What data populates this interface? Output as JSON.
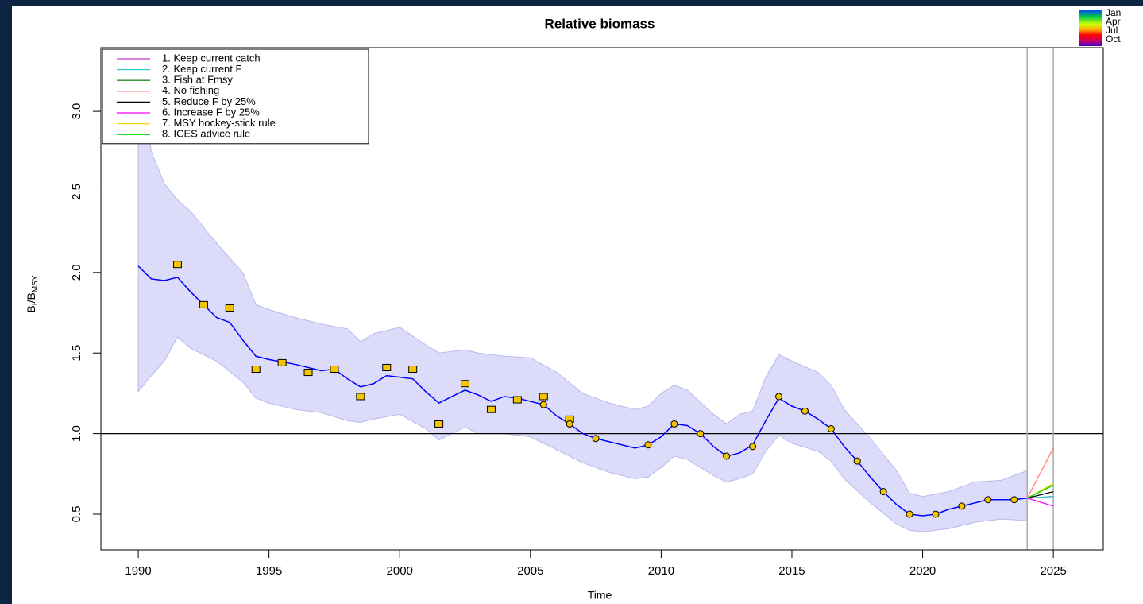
{
  "chart_data": {
    "type": "line",
    "title": "Relative biomass",
    "xlabel": "Time",
    "ylabel_parts": [
      "B",
      "t",
      "/B",
      "MSY"
    ],
    "xlim": [
      1988.57,
      2026.91
    ],
    "ylim": [
      0.278,
      3.395
    ],
    "xticks": [
      1990,
      1995,
      2000,
      2005,
      2010,
      2015,
      2020,
      2025
    ],
    "yticks": [
      0.5,
      {
        "value": 1,
        "label": "1.0"
      },
      1.5,
      {
        "value": 2,
        "label": "2.0"
      },
      2.5,
      {
        "value": 3,
        "label": "3.0"
      }
    ],
    "hline": 1,
    "vlines": [
      2024,
      2025
    ],
    "legend_position": "topleft",
    "band": {
      "color": "#dcdcfa",
      "x": [
        1990,
        1990.5,
        1991,
        1991.5,
        1992,
        1993,
        1994,
        1994.5,
        1995,
        1996,
        1997,
        1998,
        1998.5,
        1999,
        2000,
        2001,
        2001.5,
        2002,
        2002.5,
        2003,
        2004,
        2005,
        2006,
        2007,
        2008,
        2009,
        2009.5,
        2010,
        2010.5,
        2011,
        2012,
        2012.5,
        2013,
        2013.5,
        2014,
        2014.5,
        2015,
        2016,
        2016.5,
        2017,
        2018,
        2019,
        2019.5,
        2020,
        2021,
        2022,
        2023,
        2024
      ],
      "upper": [
        3.28,
        2.75,
        2.55,
        2.45,
        2.38,
        2.18,
        2.0,
        1.8,
        1.77,
        1.72,
        1.68,
        1.65,
        1.57,
        1.62,
        1.66,
        1.55,
        1.5,
        1.51,
        1.52,
        1.5,
        1.48,
        1.47,
        1.38,
        1.25,
        1.19,
        1.15,
        1.17,
        1.25,
        1.3,
        1.27,
        1.12,
        1.06,
        1.12,
        1.14,
        1.35,
        1.49,
        1.45,
        1.38,
        1.3,
        1.15,
        0.97,
        0.77,
        0.63,
        0.61,
        0.64,
        0.7,
        0.71,
        0.77
      ],
      "lower": [
        1.26,
        1.36,
        1.45,
        1.6,
        1.53,
        1.45,
        1.32,
        1.22,
        1.19,
        1.15,
        1.13,
        1.08,
        1.07,
        1.09,
        1.12,
        1.03,
        0.96,
        1.0,
        1.04,
        1.0,
        1.0,
        0.98,
        0.9,
        0.82,
        0.76,
        0.72,
        0.73,
        0.79,
        0.86,
        0.84,
        0.74,
        0.7,
        0.72,
        0.75,
        0.89,
        0.99,
        0.94,
        0.89,
        0.83,
        0.72,
        0.57,
        0.44,
        0.4,
        0.39,
        0.41,
        0.45,
        0.47,
        0.46
      ]
    },
    "estimate": {
      "color": "#0000ff",
      "x": [
        1990,
        1990.5,
        1991,
        1991.5,
        1992,
        1993,
        1993.5,
        1994,
        1994.5,
        1995,
        1996,
        1997,
        1997.5,
        1998,
        1998.5,
        1999,
        1999.5,
        2000,
        2000.5,
        2001,
        2001.5,
        2002,
        2002.5,
        2003,
        2003.5,
        2004,
        2004.5,
        2005,
        2005.5,
        2006,
        2006.5,
        2007,
        2007.5,
        2008,
        2009,
        2009.5,
        2010,
        2010.5,
        2011,
        2011.5,
        2012,
        2012.5,
        2013,
        2013.5,
        2014,
        2014.5,
        2015,
        2015.5,
        2016,
        2016.5,
        2017,
        2017.5,
        2018,
        2018.5,
        2019,
        2019.5,
        2020,
        2020.5,
        2021,
        2021.5,
        2022,
        2022.5,
        2023,
        2023.5,
        2024
      ],
      "values": [
        2.04,
        1.96,
        1.95,
        1.97,
        1.88,
        1.72,
        1.69,
        1.58,
        1.48,
        1.46,
        1.43,
        1.39,
        1.4,
        1.34,
        1.29,
        1.31,
        1.36,
        1.35,
        1.34,
        1.26,
        1.19,
        1.23,
        1.27,
        1.24,
        1.2,
        1.23,
        1.22,
        1.2,
        1.18,
        1.11,
        1.06,
        1.0,
        0.97,
        0.95,
        0.91,
        0.93,
        0.98,
        1.06,
        1.05,
        1.0,
        0.92,
        0.86,
        0.88,
        0.93,
        1.08,
        1.22,
        1.17,
        1.14,
        1.09,
        1.03,
        0.92,
        0.83,
        0.73,
        0.64,
        0.56,
        0.5,
        0.49,
        0.5,
        0.53,
        0.55,
        0.57,
        0.59,
        0.59,
        0.59,
        0.6
      ]
    },
    "index1": {
      "color": "#f5c400",
      "x": [
        1991.5,
        1992.5,
        1993.5,
        1994.5,
        1995.5,
        1996.5,
        1997.5,
        1998.5,
        1999.5,
        2000.5,
        2001.5,
        2002.5,
        2003.5,
        2004.5,
        2005.5,
        2006.5
      ],
      "values": [
        2.05,
        1.8,
        1.78,
        1.4,
        1.44,
        1.38,
        1.4,
        1.23,
        1.41,
        1.4,
        1.06,
        1.31,
        1.15,
        1.21,
        1.23,
        1.09
      ]
    },
    "index2": {
      "color": "#f5c400",
      "x": [
        2005.5,
        2006.5,
        2007.5,
        2009.5,
        2010.5,
        2011.5,
        2012.5,
        2013.5,
        2014.5,
        2015.5,
        2016.5,
        2017.5,
        2018.5,
        2019.5,
        2020.5,
        2021.5,
        2022.5,
        2023.5
      ],
      "values": [
        1.18,
        1.06,
        0.97,
        0.93,
        1.06,
        1.0,
        0.86,
        0.92,
        1.23,
        1.14,
        1.03,
        0.83,
        0.64,
        0.5,
        0.5,
        0.55,
        0.59,
        0.59
      ]
    },
    "series": [
      {
        "name": "1. Keep current catch",
        "color": "#cc33cc",
        "x": [
          2024,
          2025
        ],
        "values": [
          0.6,
          0.61
        ]
      },
      {
        "name": "2. Keep current F",
        "color": "#33cccc",
        "x": [
          2024,
          2025
        ],
        "values": [
          0.6,
          0.61
        ]
      },
      {
        "name": "3. Fish at Fmsy",
        "color": "#228b22",
        "x": [
          2024,
          2025
        ],
        "values": [
          0.6,
          0.68
        ]
      },
      {
        "name": "4. No fishing",
        "color": "#ff7f7f",
        "x": [
          2024,
          2025
        ],
        "values": [
          0.6,
          0.91
        ]
      },
      {
        "name": "5. Reduce F by 25%",
        "color": "#000000",
        "x": [
          2024,
          2025
        ],
        "values": [
          0.6,
          0.64
        ]
      },
      {
        "name": "6. Increase F by 25%",
        "color": "#ff00ff",
        "x": [
          2024,
          2025
        ],
        "values": [
          0.6,
          0.55
        ]
      },
      {
        "name": "7. MSY hockey-stick rule",
        "color": "#ffd700",
        "x": [
          2024,
          2025
        ],
        "values": [
          0.6,
          0.69
        ]
      },
      {
        "name": "8. ICES advice rule",
        "color": "#00dd00",
        "x": [
          2024,
          2025
        ],
        "values": [
          0.6,
          0.68
        ]
      }
    ],
    "colorbar": {
      "labels": [
        "Jan",
        "Apr",
        "Jul",
        "Oct"
      ]
    }
  }
}
